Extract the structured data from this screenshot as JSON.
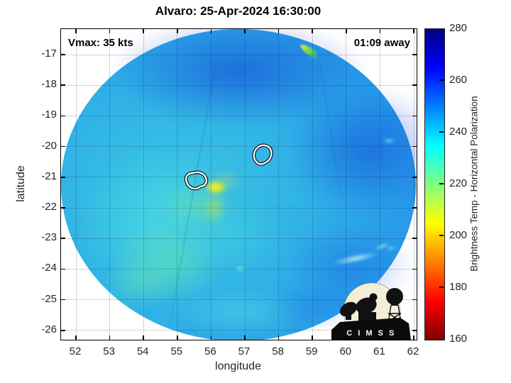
{
  "plot": {
    "title": "Alvaro: 25-Apr-2024 16:30:00",
    "annotations": {
      "vmax_label": "Vmax: 35 kts",
      "time_label": "01:09 away"
    },
    "x_axis": {
      "label": "longitude",
      "ticks": [
        "52",
        "53",
        "54",
        "55",
        "56",
        "57",
        "58",
        "59",
        "60",
        "61",
        "62"
      ]
    },
    "y_axis": {
      "label": "latitude",
      "ticks": [
        "-17",
        "-18",
        "-19",
        "-20",
        "-21",
        "-22",
        "-23",
        "-24",
        "-25",
        "-26"
      ]
    },
    "colorbar": {
      "label": "Brightness Temp - Horizontal Polarization",
      "ticks": [
        "280",
        "260",
        "240",
        "220",
        "200",
        "180",
        "160"
      ]
    },
    "logo_text": "C I M S S"
  },
  "chart_data": {
    "type": "heatmap",
    "title": "Alvaro: 25-Apr-2024 16:30:00",
    "storm_name": "Alvaro",
    "timestamp": "25-Apr-2024 16:30:00",
    "vmax_kts": 35,
    "time_offset_label": "01:09 away",
    "xlabel": "longitude",
    "ylabel": "latitude",
    "xlim": [
      51.6,
      62.1
    ],
    "ylim": [
      -26.4,
      -16.3
    ],
    "x_ticks": [
      52,
      53,
      54,
      55,
      56,
      57,
      58,
      59,
      60,
      61,
      62
    ],
    "y_ticks": [
      -17,
      -18,
      -19,
      -20,
      -21,
      -22,
      -23,
      -24,
      -25,
      -26
    ],
    "grid": true,
    "colorbar": {
      "label": "Brightness Temp - Horizontal Polarization",
      "min": 160,
      "max": 280,
      "ticks": [
        160,
        180,
        200,
        220,
        240,
        260,
        280
      ],
      "colormap": "jet reversed (280 = dark blue at top, 160 = dark red at bottom)"
    },
    "swath": {
      "shape": "circular microwave swath on white background",
      "center_lon": 56.85,
      "center_lat": -21.1,
      "radius_deg": 5.2,
      "dominant_temps": "235-265 (cyan to blue); cooler cyan/green patches southwest sector"
    },
    "features": [
      {
        "name": "warm spot (yellow)",
        "lon": 56.2,
        "lat": -21.2,
        "approx_temp": 210
      },
      {
        "name": "white center-fix contour",
        "lon": 55.55,
        "lat": -21.2
      },
      {
        "name": "white center-fix contour",
        "lon": 57.5,
        "lat": -20.35
      },
      {
        "name": "warm yellow-green streak at swath edge",
        "lon": 59.0,
        "lat": -16.7
      },
      {
        "name": "bright cyan cold streak",
        "lon": 60.3,
        "lat": -23.5
      }
    ]
  }
}
